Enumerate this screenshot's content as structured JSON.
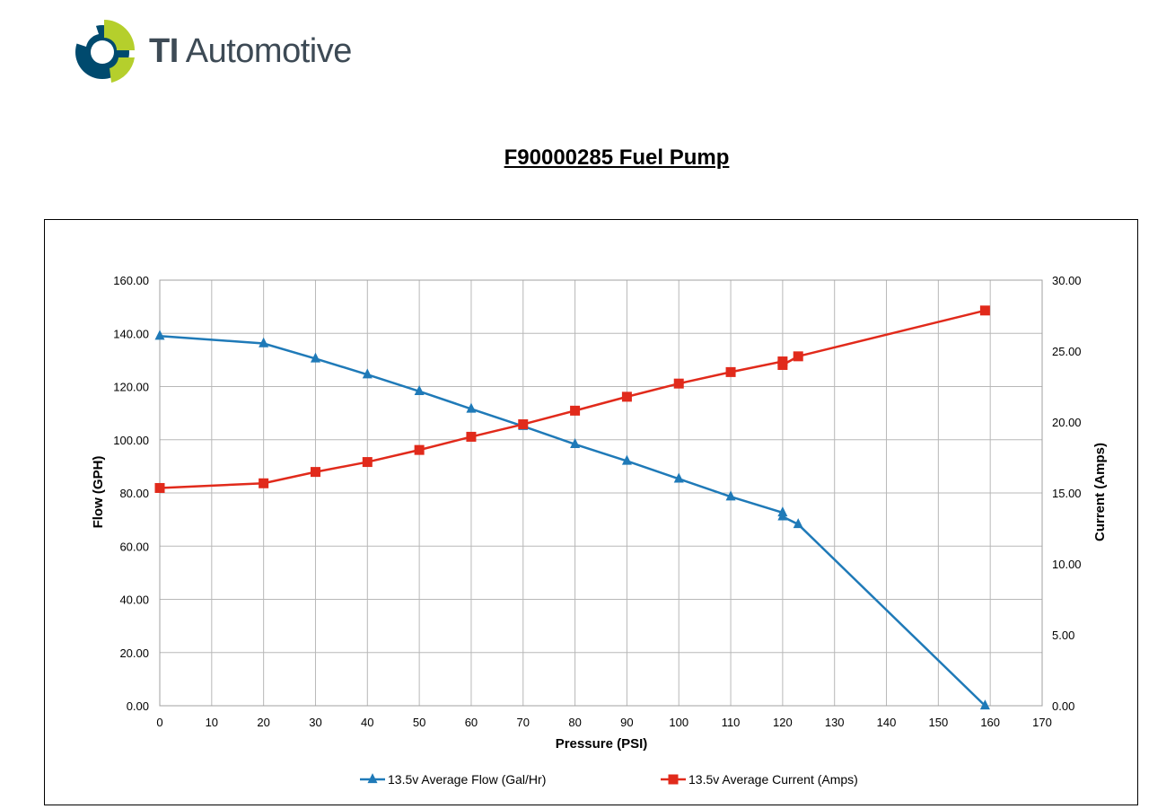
{
  "brand": {
    "name_bold": "TI",
    "name_rest": "Automotive"
  },
  "colors": {
    "logo_dark": "#004a6e",
    "logo_green": "#b5cf2c",
    "flow": "#1f7ab8",
    "current": "#e12a1b"
  },
  "chart_data": {
    "type": "line",
    "title": "F90000285 Fuel Pump",
    "xlabel": "Pressure (PSI)",
    "ylabel": "Flow (GPH)",
    "y2label": "Current (Amps)",
    "xlim": [
      0,
      170
    ],
    "ylim": [
      0,
      160
    ],
    "y2lim": [
      0,
      30
    ],
    "xticks": [
      "0",
      "10",
      "20",
      "30",
      "40",
      "50",
      "60",
      "70",
      "80",
      "90",
      "100",
      "110",
      "120",
      "130",
      "140",
      "150",
      "160",
      "170"
    ],
    "yticks": [
      "0.00",
      "20.00",
      "40.00",
      "60.00",
      "80.00",
      "100.00",
      "120.00",
      "140.00",
      "160.00"
    ],
    "y2ticks": [
      "0.00",
      "5.00",
      "10.00",
      "15.00",
      "20.00",
      "25.00",
      "30.00"
    ],
    "grid": true,
    "legend_position": "bottom",
    "series": [
      {
        "name": "13.5v Average Flow (Gal/Hr)",
        "axis": "left",
        "marker": "triangle",
        "x": [
          0,
          20,
          30,
          40,
          50,
          60,
          70,
          80,
          90,
          100,
          110,
          120,
          120,
          123,
          159
        ],
        "y": [
          139.0,
          136.2,
          130.5,
          124.5,
          118.2,
          111.6,
          105.1,
          98.3,
          92.0,
          85.3,
          78.6,
          72.6,
          71.1,
          68.2,
          0.0
        ]
      },
      {
        "name": "13.5v Average Current (Amps)",
        "axis": "right",
        "marker": "square",
        "x": [
          0,
          20,
          30,
          40,
          50,
          60,
          70,
          80,
          90,
          100,
          110,
          120,
          120,
          123,
          159
        ],
        "y": [
          15.35,
          15.68,
          16.48,
          17.18,
          18.03,
          18.96,
          19.84,
          20.8,
          21.78,
          22.71,
          23.52,
          24.27,
          24.02,
          24.63,
          27.86
        ]
      }
    ]
  }
}
